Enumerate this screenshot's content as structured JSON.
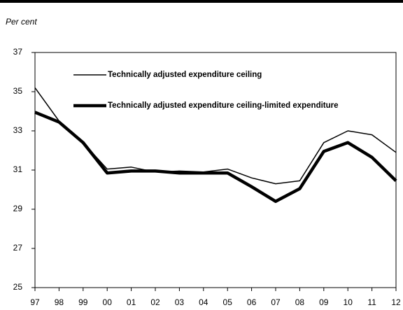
{
  "chart_data": {
    "type": "line",
    "ylabel": "Per cent",
    "categories": [
      "97",
      "98",
      "99",
      "00",
      "01",
      "02",
      "03",
      "04",
      "05",
      "06",
      "07",
      "08",
      "09",
      "10",
      "11",
      "12"
    ],
    "series": [
      {
        "name": "Technically adjusted expenditure ceiling",
        "color": "#000000",
        "values": [
          35.2,
          33.5,
          32.4,
          31.05,
          31.15,
          30.9,
          30.95,
          30.9,
          31.05,
          30.6,
          30.3,
          30.45,
          32.4,
          33.0,
          32.8,
          31.9
        ]
      },
      {
        "name": "Technically adjusted expenditure ceiling-limited expenditure",
        "color": "#000000",
        "values": [
          33.95,
          33.45,
          32.4,
          30.85,
          30.95,
          30.95,
          30.85,
          30.85,
          30.85,
          30.15,
          29.4,
          30.05,
          31.95,
          32.4,
          31.65,
          30.45
        ]
      }
    ],
    "ylim": [
      25,
      37
    ],
    "yticks": [
      25,
      27,
      29,
      31,
      33,
      35,
      37
    ]
  }
}
